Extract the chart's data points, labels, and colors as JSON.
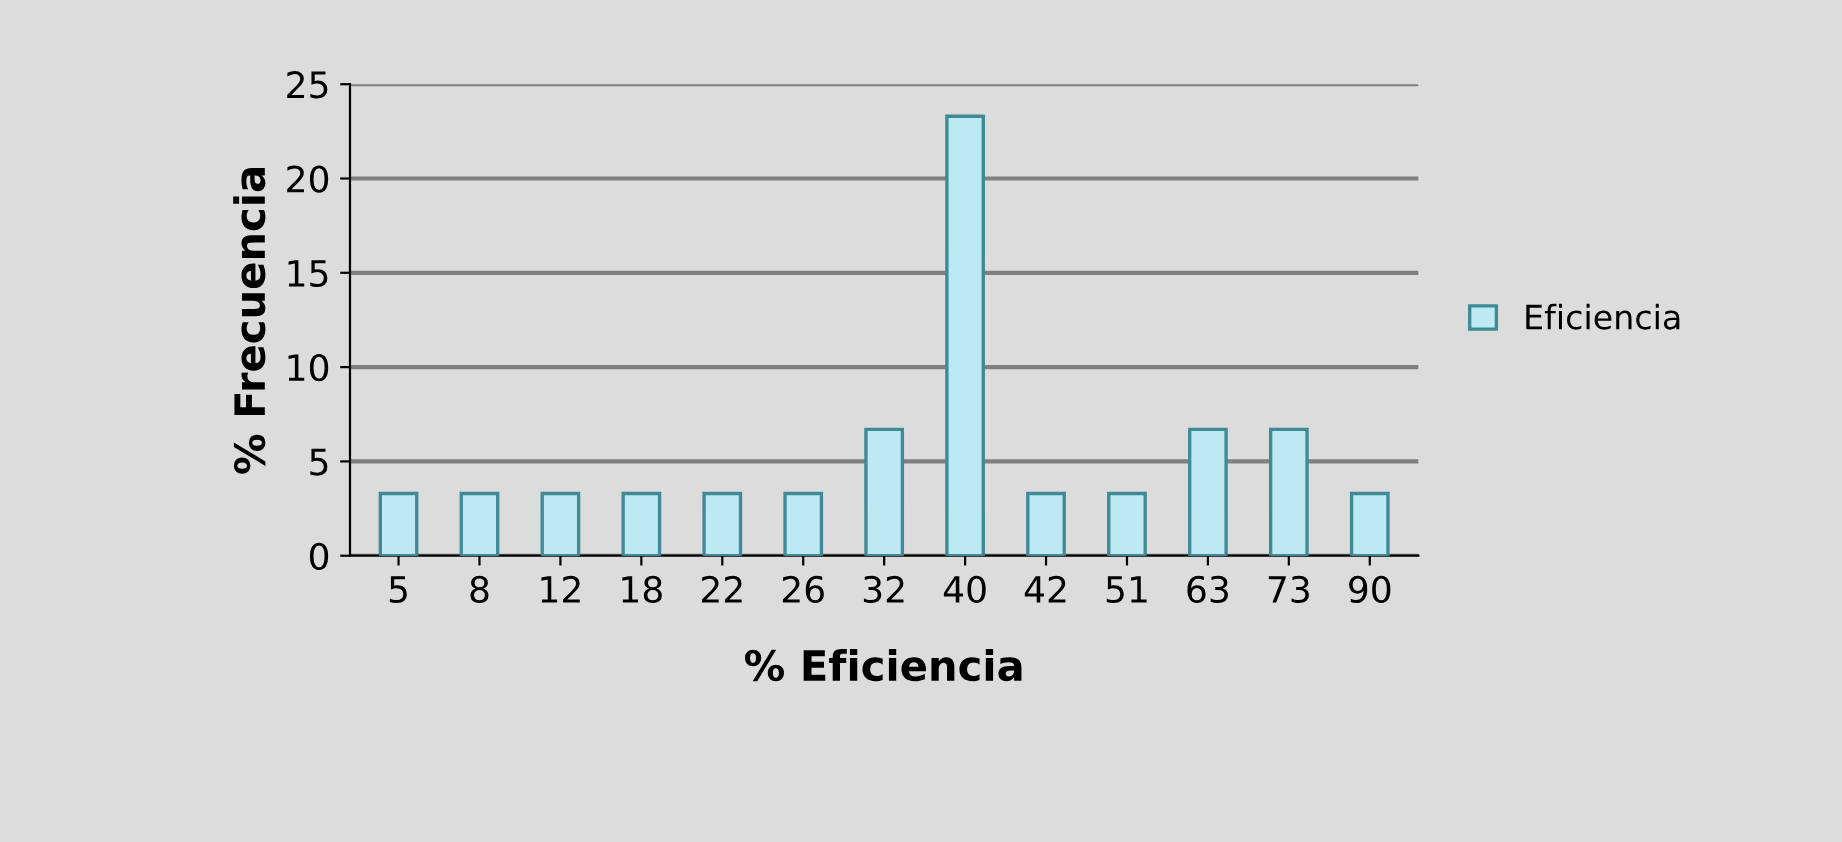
{
  "chart_data": {
    "type": "bar",
    "xlabel": "% Eficiencia",
    "ylabel": "% Frecuencia",
    "categories": [
      "5",
      "8",
      "12",
      "18",
      "22",
      "26",
      "32",
      "40",
      "42",
      "51",
      "63",
      "73",
      "90"
    ],
    "series": [
      {
        "name": "Eficiencia",
        "color": "#bdeaf2",
        "values": [
          3.3,
          3.3,
          3.3,
          3.3,
          3.3,
          3.3,
          6.7,
          23.3,
          3.3,
          3.3,
          6.7,
          6.7,
          3.3
        ]
      }
    ],
    "ylim": [
      0,
      25
    ],
    "yticks": [
      0,
      5,
      10,
      15,
      20,
      25
    ],
    "grid": "y",
    "legend": "right"
  }
}
